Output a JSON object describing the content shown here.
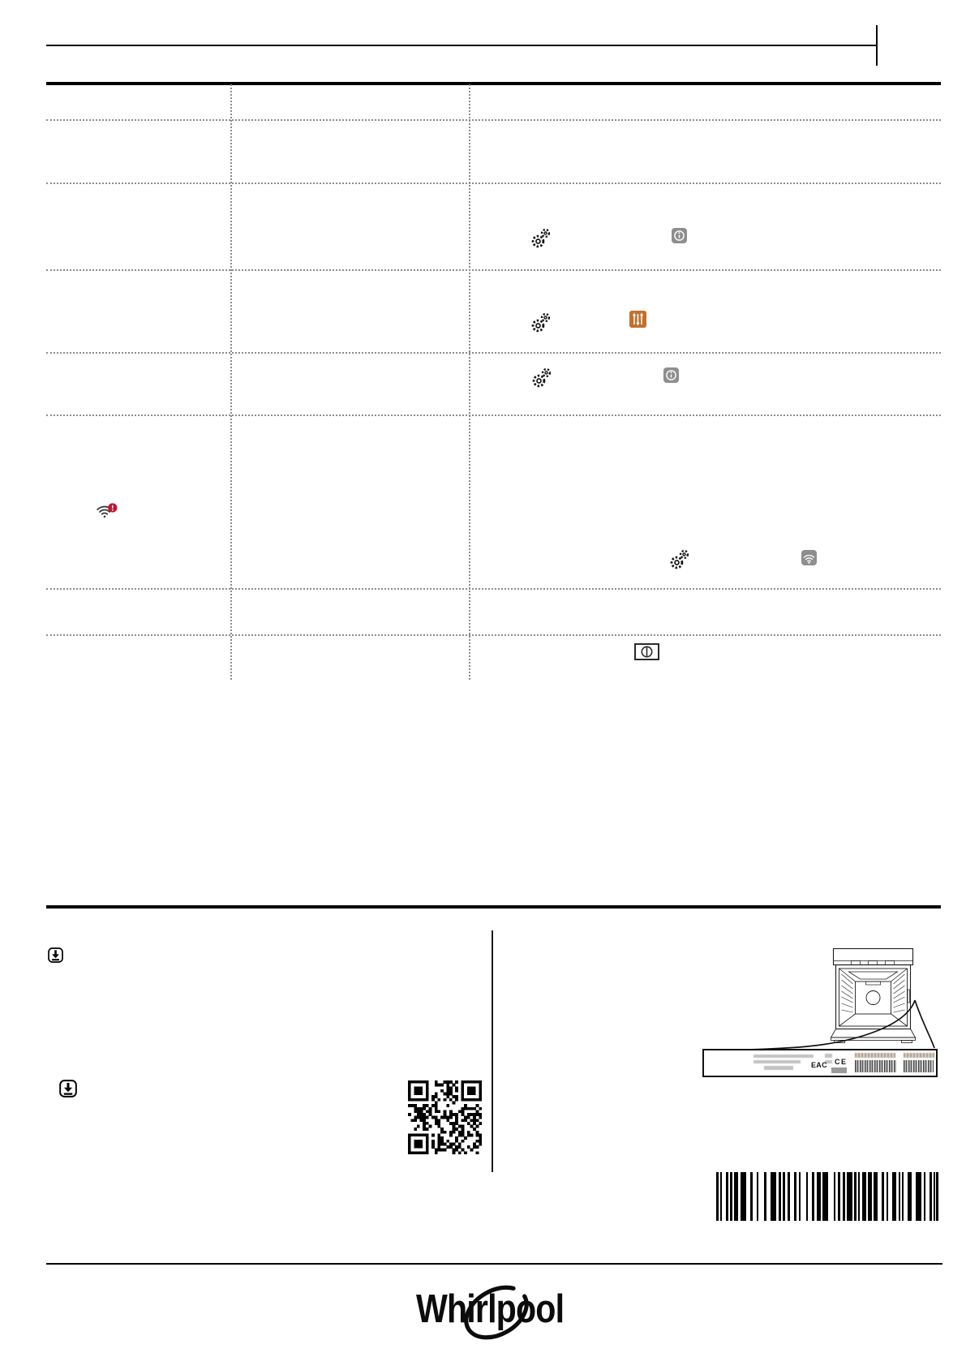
{
  "page": {
    "background": "#ffffff",
    "rule_color": "#000000",
    "dotted_line_color": "#8c8c8c"
  },
  "table": {
    "columns": 3,
    "rows": [
      {
        "name": "row-1",
        "icons": []
      },
      {
        "name": "row-2",
        "icons": []
      },
      {
        "name": "row-3",
        "icons": [
          "settings-gears-icon",
          "info-button-icon"
        ]
      },
      {
        "name": "row-4",
        "icons": [
          "settings-gears-icon",
          "adjust-sliders-button-icon"
        ]
      },
      {
        "name": "row-5",
        "icons": [
          "settings-gears-icon",
          "info-button-icon"
        ]
      },
      {
        "name": "row-6",
        "icons": [
          "wifi-error-icon",
          "settings-gears-icon",
          "wifi-button-icon"
        ]
      },
      {
        "name": "row-7",
        "icons": []
      },
      {
        "name": "row-8",
        "icons": [
          "power-button-icon"
        ]
      }
    ]
  },
  "icons": {
    "settings_gears": {
      "glyph": "double-gear",
      "color": "#161616"
    },
    "info_button": {
      "glyph": "circled-i",
      "background": "#8e8e8e",
      "foreground": "#ffffff"
    },
    "adjust_sliders_button": {
      "glyph": "vertical-sliders",
      "background": "#c2702c",
      "foreground": "#ffffff"
    },
    "wifi_error": {
      "glyph": "wifi-with-alert-badge",
      "color": "#3a3a3a",
      "badge_color": "#c41230",
      "badge_mark": "!"
    },
    "wifi_button": {
      "glyph": "wifi",
      "background": "#8e8e8e",
      "foreground": "#ffffff"
    },
    "power_button": {
      "glyph": "power-symbol",
      "border": "#2a2a2a",
      "background": "#ffffff"
    },
    "download": {
      "glyph": "download-arrow",
      "color": "#000000"
    }
  },
  "footer": {
    "rating_plate": {
      "cert_marks": [
        "EAC",
        "CE"
      ]
    },
    "brand_logo": "Whirlpool"
  }
}
